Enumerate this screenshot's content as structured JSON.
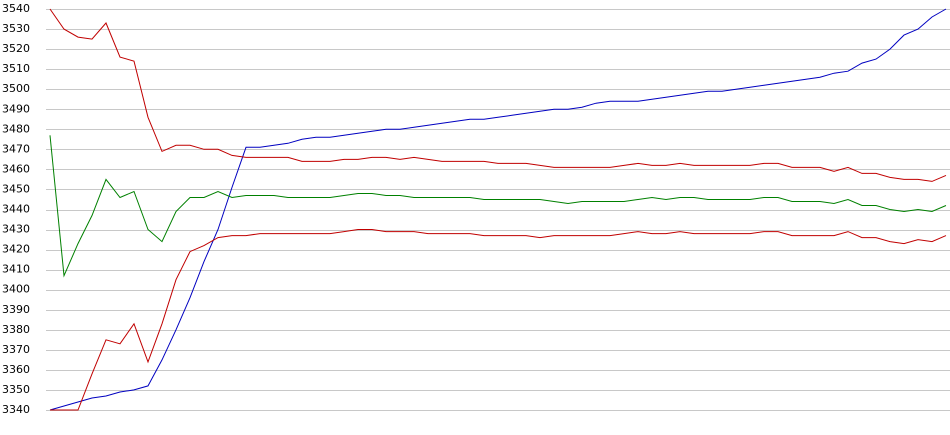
{
  "chart_data": {
    "type": "line",
    "categories": [
      null,
      null,
      null,
      null,
      null,
      null,
      null,
      null,
      null,
      null,
      null,
      null,
      null,
      null,
      null,
      null,
      null,
      null,
      null,
      null,
      null,
      null,
      null,
      null,
      null,
      null,
      null,
      null,
      null,
      null,
      null,
      null,
      null,
      null,
      null,
      null,
      null,
      null,
      null,
      null,
      null,
      null,
      null,
      null,
      null,
      null,
      null,
      null,
      null,
      null,
      null,
      null,
      null,
      null,
      null,
      null,
      null,
      null,
      null,
      null,
      null,
      null,
      null,
      null,
      null
    ],
    "series": [
      {
        "color": "#0000c0",
        "values": [
          3340,
          3342,
          3344,
          3346,
          3347,
          3349,
          3350,
          3352,
          3365,
          3380,
          3396,
          3414,
          3430,
          3451,
          3471,
          3471,
          3472,
          3473,
          3475,
          3476,
          3476,
          3477,
          3478,
          3479,
          3480,
          3480,
          3481,
          3482,
          3483,
          3484,
          3485,
          3485,
          3486,
          3487,
          3488,
          3489,
          3490,
          3490,
          3491,
          3493,
          3494,
          3494,
          3494,
          3495,
          3496,
          3497,
          3498,
          3499,
          3499,
          3500,
          3501,
          3502,
          3503,
          3504,
          3505,
          3506,
          3508,
          3509,
          3513,
          3515,
          3520,
          3527,
          3530,
          3536,
          3540
        ]
      },
      {
        "color": "#c00000",
        "values": [
          3540,
          3530,
          3526,
          3525,
          3533,
          3516,
          3514,
          3486,
          3469,
          3472,
          3472,
          3470,
          3470,
          3467,
          3466,
          3466,
          3466,
          3466,
          3464,
          3464,
          3464,
          3465,
          3465,
          3466,
          3466,
          3465,
          3466,
          3465,
          3464,
          3464,
          3464,
          3464,
          3463,
          3463,
          3463,
          3462,
          3461,
          3461,
          3461,
          3461,
          3461,
          3462,
          3463,
          3462,
          3462,
          3463,
          3462,
          3462,
          3462,
          3462,
          3462,
          3463,
          3463,
          3461,
          3461,
          3461,
          3459,
          3461,
          3458,
          3458,
          3456,
          3455,
          3455,
          3454,
          3457
        ]
      },
      {
        "color": "#008000",
        "values": [
          3477,
          3407,
          3423,
          3437,
          3455,
          3446,
          3449,
          3430,
          3424,
          3439,
          3446,
          3446,
          3449,
          3446,
          3447,
          3447,
          3447,
          3446,
          3446,
          3446,
          3446,
          3447,
          3448,
          3448,
          3447,
          3447,
          3446,
          3446,
          3446,
          3446,
          3446,
          3445,
          3445,
          3445,
          3445,
          3445,
          3444,
          3443,
          3444,
          3444,
          3444,
          3444,
          3445,
          3446,
          3445,
          3446,
          3446,
          3445,
          3445,
          3445,
          3445,
          3446,
          3446,
          3444,
          3444,
          3444,
          3443,
          3445,
          3442,
          3442,
          3440,
          3439,
          3440,
          3439,
          3442
        ]
      },
      {
        "color": "#c00000",
        "values": [
          3340,
          3340,
          3340,
          3358,
          3375,
          3373,
          3383,
          3364,
          3383,
          3405,
          3419,
          3422,
          3426,
          3427,
          3427,
          3428,
          3428,
          3428,
          3428,
          3428,
          3428,
          3429,
          3430,
          3430,
          3429,
          3429,
          3429,
          3428,
          3428,
          3428,
          3428,
          3427,
          3427,
          3427,
          3427,
          3426,
          3427,
          3427,
          3427,
          3427,
          3427,
          3428,
          3429,
          3428,
          3428,
          3429,
          3428,
          3428,
          3428,
          3428,
          3428,
          3429,
          3429,
          3427,
          3427,
          3427,
          3427,
          3429,
          3426,
          3426,
          3424,
          3423,
          3425,
          3424,
          3427
        ]
      }
    ],
    "ylim": [
      3340,
      3540
    ],
    "yticks": [
      3340,
      3350,
      3360,
      3370,
      3380,
      3390,
      3400,
      3410,
      3420,
      3430,
      3440,
      3450,
      3460,
      3470,
      3480,
      3490,
      3500,
      3510,
      3520,
      3530,
      3540
    ],
    "grid": true
  }
}
